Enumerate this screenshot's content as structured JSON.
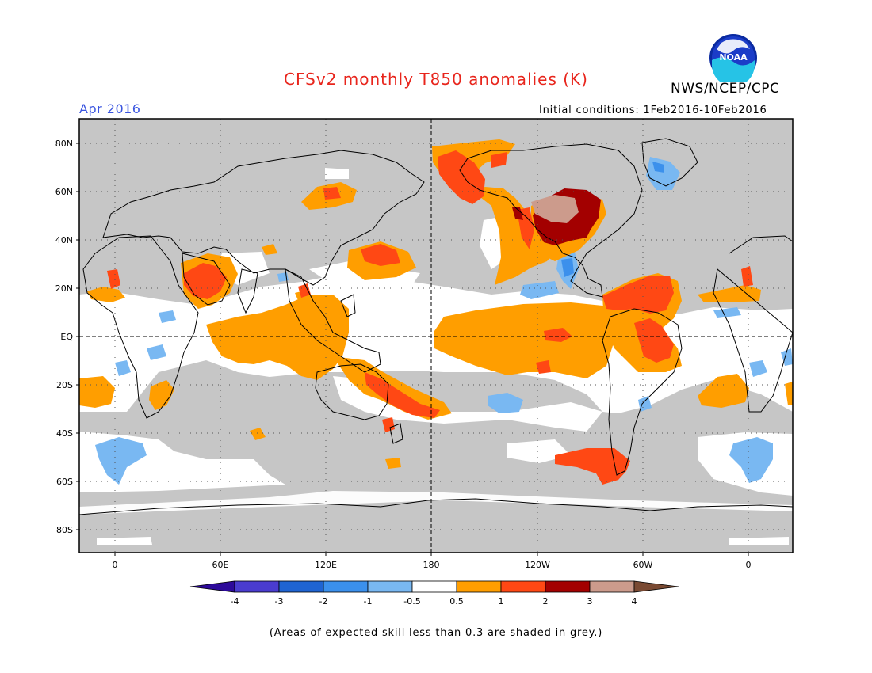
{
  "title": "CFSv2 monthly T850 anomalies (K)",
  "agency": "NWS/NCEP/CPC",
  "logo_text": "NOAA",
  "period": "Apr 2016",
  "initial_conditions": "Initial conditions: 1Feb2016-10Feb2016",
  "footnote": "(Areas of expected skill less than 0.3 are shaded in grey.)",
  "lat_labels": [
    "80N",
    "60N",
    "40N",
    "20N",
    "EQ",
    "20S",
    "40S",
    "60S",
    "80S"
  ],
  "lon_labels": [
    "0",
    "60E",
    "120E",
    "180",
    "120W",
    "60W",
    "0"
  ],
  "colorbar": {
    "labels": [
      "-4",
      "-3",
      "-2",
      "-1",
      "-0.5",
      "0.5",
      "1",
      "2",
      "3",
      "4"
    ],
    "colors": [
      "#2d0a9a",
      "#4a3ccf",
      "#1f64d2",
      "#3b90ec",
      "#79b8f2",
      "#ffffff",
      "#ff9e00",
      "#ff4814",
      "#a30000",
      "#cc9b8c",
      "#7a4a33"
    ]
  },
  "colors": {
    "title": "#e8251c",
    "period": "#3a55e0",
    "low_skill_grey": "#c6c6c6"
  }
}
